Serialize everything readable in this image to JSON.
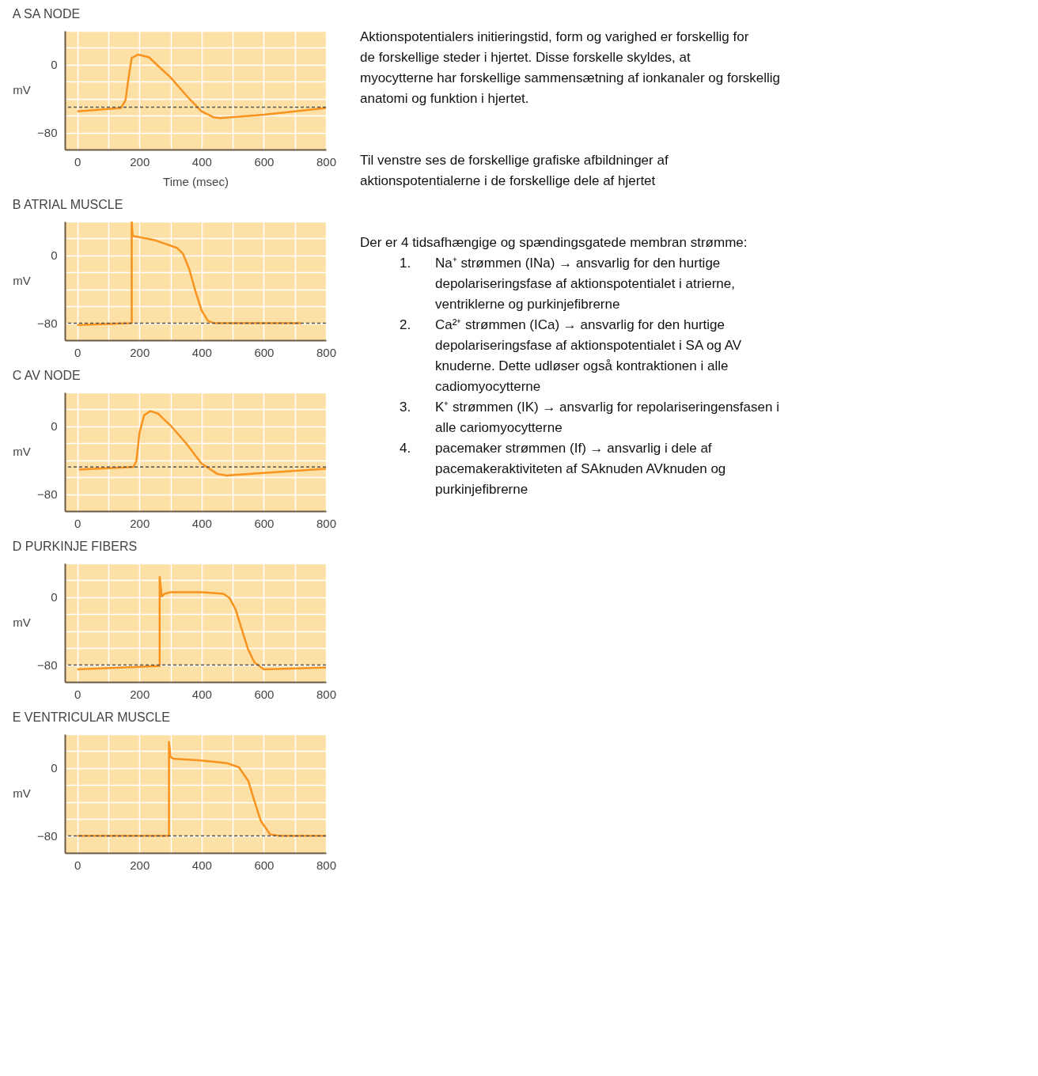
{
  "chart_data": [
    {
      "type": "line",
      "title": "A   SA NODE",
      "xlabel": "Time (msec)",
      "ylabel": "mV",
      "xlim": [
        -40,
        800
      ],
      "ylim": [
        -100,
        40
      ],
      "xticks": [
        0,
        {
          "value": 100,
          "label": null
        },
        200,
        {
          "value": 300,
          "label": null
        },
        400,
        {
          "value": 500,
          "label": null
        },
        600,
        {
          "value": 700,
          "label": null
        },
        800
      ],
      "yticks": [
        {
          "value": 40,
          "label": null
        },
        {
          "value": 20,
          "label": null
        },
        0,
        {
          "value": -20,
          "label": null
        },
        {
          "value": -40,
          "label": null
        },
        {
          "value": -60,
          "label": null
        },
        -80
      ],
      "grid": true,
      "marker": "none",
      "line_style": "solid",
      "series": [
        {
          "color": "#f7931e",
          "x": [
            0,
            140,
            155,
            165,
            175,
            195,
            230,
            300,
            360,
            400,
            440,
            460,
            600,
            800
          ],
          "values": [
            -55,
            -51,
            -42,
            -15,
            8,
            12,
            9,
            -15,
            -40,
            -55,
            -62,
            -63,
            -59,
            -51
          ]
        }
      ],
      "ref_lines": [
        {
          "axis": "y",
          "value": -50,
          "color": "#555555",
          "line_style": "dashed"
        }
      ]
    },
    {
      "type": "line",
      "title": "B   ATRIAL MUSCLE",
      "ylabel": "mV",
      "xlim": [
        -40,
        800
      ],
      "ylim": [
        -100,
        40
      ],
      "xticks": [
        0,
        {
          "value": 100,
          "label": null
        },
        200,
        {
          "value": 300,
          "label": null
        },
        400,
        {
          "value": 500,
          "label": null
        },
        600,
        {
          "value": 700,
          "label": null
        },
        800
      ],
      "yticks": [
        {
          "value": 40,
          "label": null
        },
        {
          "value": 20,
          "label": null
        },
        0,
        {
          "value": -20,
          "label": null
        },
        {
          "value": -40,
          "label": null
        },
        {
          "value": -60,
          "label": null
        },
        -80
      ],
      "grid": true,
      "marker": "none",
      "line_style": "solid",
      "series": [
        {
          "color": "#f7931e",
          "x": [
            0,
            175,
            175,
            178,
            250,
            320,
            340,
            360,
            380,
            400,
            420,
            440,
            720
          ],
          "values": [
            -82,
            -80,
            40,
            23,
            18,
            9,
            2,
            -16,
            -42,
            -65,
            -77,
            -80,
            -80
          ]
        }
      ],
      "ref_lines": [
        {
          "axis": "y",
          "value": -80,
          "color": "#555555",
          "line_style": "dashed"
        }
      ]
    },
    {
      "type": "line",
      "title": "C   AV NODE",
      "ylabel": "mV",
      "xlim": [
        -40,
        800
      ],
      "ylim": [
        -100,
        40
      ],
      "xticks": [
        0,
        {
          "value": 100,
          "label": null
        },
        200,
        {
          "value": 300,
          "label": null
        },
        400,
        {
          "value": 500,
          "label": null
        },
        600,
        {
          "value": 700,
          "label": null
        },
        800
      ],
      "yticks": [
        {
          "value": 40,
          "label": null
        },
        {
          "value": 20,
          "label": null
        },
        0,
        {
          "value": -20,
          "label": null
        },
        {
          "value": -40,
          "label": null
        },
        {
          "value": -60,
          "label": null
        },
        -80
      ],
      "grid": true,
      "marker": "none",
      "line_style": "solid",
      "series": [
        {
          "color": "#f7931e",
          "x": [
            5,
            180,
            190,
            200,
            215,
            235,
            260,
            300,
            350,
            400,
            450,
            480,
            600,
            800
          ],
          "values": [
            -51,
            -48,
            -41,
            -8,
            13,
            18,
            15,
            1,
            -20,
            -44,
            -56,
            -58,
            -55,
            -50
          ]
        }
      ],
      "ref_lines": [
        {
          "axis": "y",
          "value": -48,
          "color": "#555555",
          "line_style": "dashed"
        }
      ]
    },
    {
      "type": "line",
      "title": "D   PURKINJE FIBERS",
      "ylabel": "mV",
      "xlim": [
        -40,
        800
      ],
      "ylim": [
        -100,
        40
      ],
      "xticks": [
        0,
        {
          "value": 100,
          "label": null
        },
        200,
        {
          "value": 300,
          "label": null
        },
        400,
        {
          "value": 500,
          "label": null
        },
        600,
        {
          "value": 700,
          "label": null
        },
        800
      ],
      "yticks": [
        {
          "value": 40,
          "label": null
        },
        {
          "value": 20,
          "label": null
        },
        0,
        {
          "value": -20,
          "label": null
        },
        {
          "value": -40,
          "label": null
        },
        {
          "value": -60,
          "label": null
        },
        -80
      ],
      "grid": true,
      "marker": "none",
      "line_style": "solid",
      "series": [
        {
          "color": "#f7931e",
          "x": [
            0,
            265,
            265,
            272,
            280,
            300,
            400,
            470,
            490,
            510,
            530,
            550,
            570,
            600,
            800
          ],
          "values": [
            -85,
            -81,
            24,
            1,
            4,
            6,
            6,
            4,
            -1,
            -15,
            -39,
            -62,
            -77,
            -85,
            -83
          ]
        }
      ],
      "ref_lines": [
        {
          "axis": "y",
          "value": -80,
          "color": "#555555",
          "line_style": "dashed"
        }
      ]
    },
    {
      "type": "line",
      "title": "E   VENTRICULAR MUSCLE",
      "ylabel": "mV",
      "xlim": [
        -40,
        800
      ],
      "ylim": [
        -100,
        40
      ],
      "xticks": [
        0,
        {
          "value": 100,
          "label": null
        },
        200,
        {
          "value": 300,
          "label": null
        },
        400,
        {
          "value": 500,
          "label": null
        },
        600,
        {
          "value": 700,
          "label": null
        },
        800
      ],
      "yticks": [
        {
          "value": 40,
          "label": null
        },
        {
          "value": 20,
          "label": null
        },
        0,
        {
          "value": -20,
          "label": null
        },
        {
          "value": -40,
          "label": null
        },
        {
          "value": -60,
          "label": null
        },
        -80
      ],
      "grid": true,
      "marker": "none",
      "line_style": "solid",
      "series": [
        {
          "color": "#f7931e",
          "x": [
            0,
            295,
            295,
            300,
            310,
            400,
            480,
            520,
            550,
            570,
            590,
            620,
            650,
            800
          ],
          "values": [
            -80,
            -80,
            31,
            13,
            11,
            9,
            6,
            1,
            -15,
            -39,
            -62,
            -78,
            -80,
            -80
          ]
        }
      ],
      "ref_lines": [
        {
          "axis": "y",
          "value": -80,
          "color": "#555555",
          "line_style": "dashed"
        }
      ]
    },
    {
      "type": "other",
      "annotations": [
        "Aktionspotentialers initieringstid, form og varighed er forskellig for de forskellige steder i hjertet. Disse forskelle skyldes, at myocytterne har forskellige sammensætning af ionkanaler og forskellig anatomi og funktion i hjertet.",
        "Til venstre ses de forskellige grafiske afbildninger af aktionspotentialerne i de forskellige dele af hjertet",
        "Der er 4 tidsafhængige og spændingsgatede membran strømme:",
        "1. Na⁺ strømmen (INa) → ansvarlig for den hurtige depolariseringsfase af aktionspotentialet i atrierne, ventriklerne og purkinjefibrerne",
        "2. Ca²⁺ strømmen (ICa) → ansvarlig for den hurtige depolariseringsfase af aktionspotentialet i SA og AV knuderne. Dette udløser også kontraktionen i alle cadiomyocytterne",
        "3. K⁺ strømmen (IK) → ansvarlig for repolariseringensfasen i alle cariomyocytterne",
        "4. pacemaker strømmen (If) → ansvarlig i dele af pacemakeraktiviteten af SAknuden AVknuden og purkinjefibrerne"
      ]
    }
  ]
}
